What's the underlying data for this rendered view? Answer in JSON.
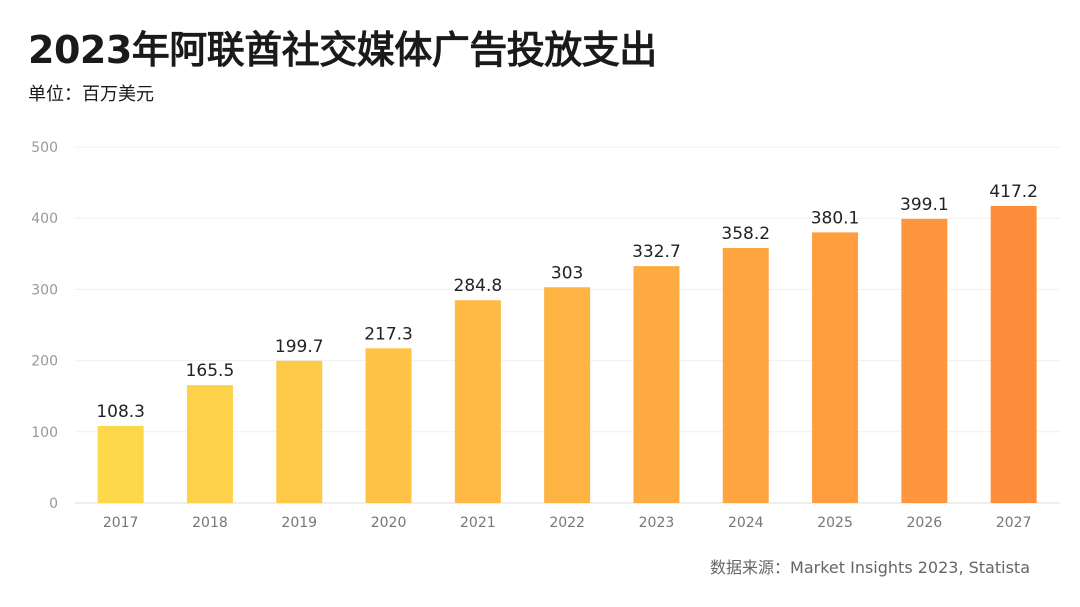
{
  "chart_data": {
    "type": "bar",
    "title": "2023年阿联酋社交媒体广告投放支出",
    "subtitle": "单位：百万美元",
    "categories": [
      "2017",
      "2018",
      "2019",
      "2020",
      "2021",
      "2022",
      "2023",
      "2024",
      "2025",
      "2026",
      "2027"
    ],
    "values": [
      108.3,
      165.5,
      199.7,
      217.3,
      284.8,
      303,
      332.7,
      358.2,
      380.1,
      399.1,
      417.2
    ],
    "data_labels": [
      "108.3",
      "165.5",
      "199.7",
      "217.3",
      "284.8",
      "303",
      "332.7",
      "358.2",
      "380.1",
      "399.1",
      "417.2"
    ],
    "ylim": [
      0,
      500
    ],
    "yticks": [
      0,
      100,
      200,
      300,
      400,
      500
    ],
    "grid": true,
    "colors": {
      "start": "#FDD84A",
      "end": "#FF8E3C"
    },
    "source": "数据来源：Market Insights 2023, Statista"
  }
}
